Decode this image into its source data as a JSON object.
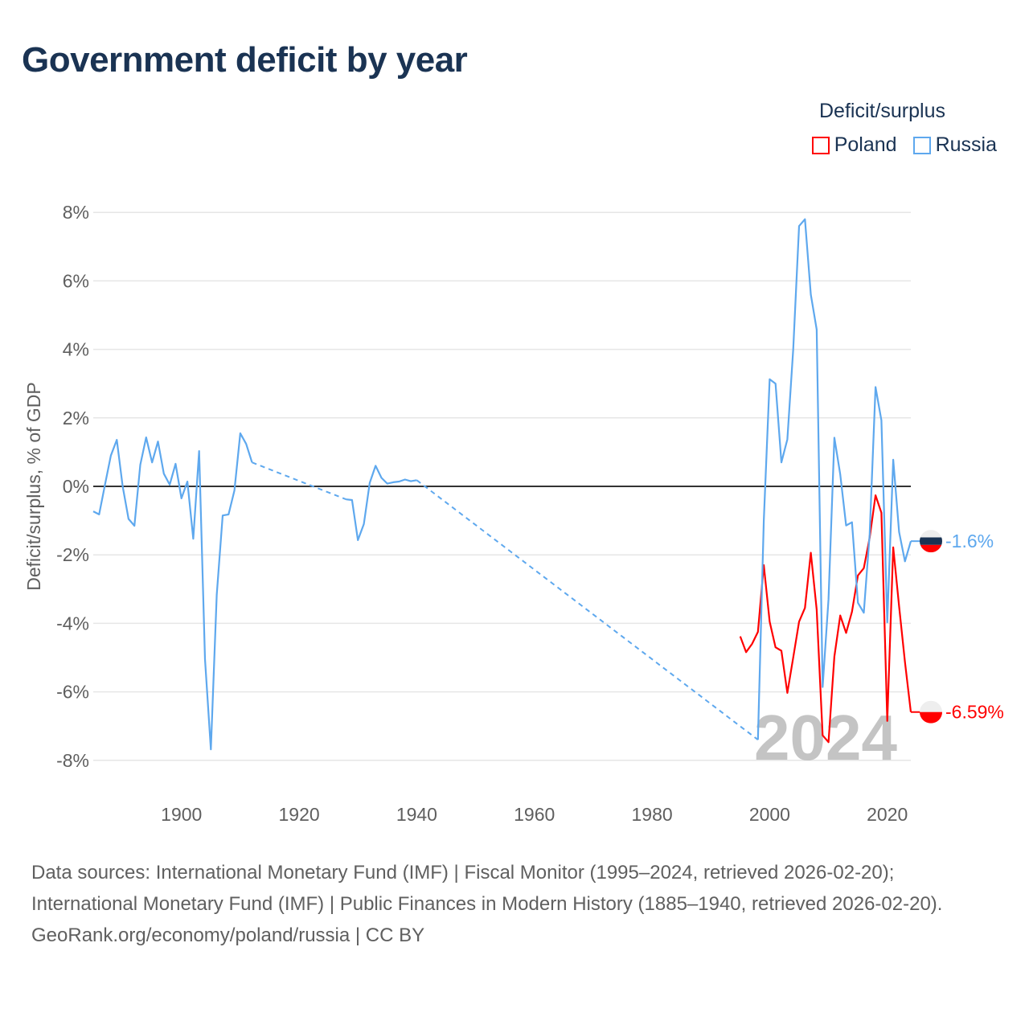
{
  "chart_data": {
    "type": "line",
    "title": "Government deficit by year",
    "xlabel": "",
    "ylabel": "Deficit/surplus, % of GDP",
    "xlim": [
      1885,
      2024
    ],
    "ylim": [
      -8.5,
      8.5
    ],
    "x_ticks": [
      1900,
      1920,
      1940,
      1960,
      1980,
      2000,
      2020
    ],
    "x_tick_labels": [
      "1900",
      "1920",
      "1940",
      "1960",
      "1980",
      "2000",
      "2020"
    ],
    "y_ticks": [
      -8,
      -6,
      -4,
      -2,
      0,
      2,
      4,
      6,
      8
    ],
    "y_tick_labels": [
      "-8%",
      "-6%",
      "-4%",
      "-2%",
      "0%",
      "2%",
      "4%",
      "6%",
      "8%"
    ],
    "grid": true,
    "legend_title": "Deficit/surplus",
    "legend_position": "top-right",
    "watermark_year": "2024",
    "series": [
      {
        "name": "Poland",
        "color": "#ff0000",
        "end_label": "-6.59%",
        "points": [
          [
            1995,
            -4.38
          ],
          [
            1996,
            -4.84
          ],
          [
            1997,
            -4.6
          ],
          [
            1998,
            -4.25
          ],
          [
            1999,
            -2.3
          ],
          [
            2000,
            -3.95
          ],
          [
            2001,
            -4.7
          ],
          [
            2002,
            -4.8
          ],
          [
            2003,
            -6.03
          ],
          [
            2004,
            -5.0
          ],
          [
            2005,
            -3.95
          ],
          [
            2006,
            -3.55
          ],
          [
            2007,
            -1.94
          ],
          [
            2008,
            -3.6
          ],
          [
            2009,
            -7.27
          ],
          [
            2010,
            -7.47
          ],
          [
            2011,
            -4.97
          ],
          [
            2012,
            -3.77
          ],
          [
            2013,
            -4.28
          ],
          [
            2014,
            -3.66
          ],
          [
            2015,
            -2.6
          ],
          [
            2016,
            -2.39
          ],
          [
            2017,
            -1.5
          ],
          [
            2018,
            -0.26
          ],
          [
            2019,
            -0.77
          ],
          [
            2020,
            -6.85
          ],
          [
            2021,
            -1.78
          ],
          [
            2022,
            -3.5
          ],
          [
            2023,
            -5.13
          ],
          [
            2024,
            -6.59
          ]
        ]
      },
      {
        "name": "Russia",
        "color": "#5ea8ee",
        "end_label": "-1.6%",
        "points": [
          [
            1885,
            -0.73
          ],
          [
            1886,
            -0.82
          ],
          [
            1887,
            0.05
          ],
          [
            1888,
            0.9
          ],
          [
            1889,
            1.36
          ],
          [
            1890,
            0.0
          ],
          [
            1891,
            -0.95
          ],
          [
            1892,
            -1.15
          ],
          [
            1893,
            0.63
          ],
          [
            1894,
            1.43
          ],
          [
            1895,
            0.7
          ],
          [
            1896,
            1.31
          ],
          [
            1897,
            0.37
          ],
          [
            1898,
            0.05
          ],
          [
            1899,
            0.66
          ],
          [
            1900,
            -0.35
          ],
          [
            1901,
            0.14
          ],
          [
            1902,
            -1.53
          ],
          [
            1903,
            1.03
          ],
          [
            1904,
            -5.05
          ],
          [
            1905,
            -7.68
          ],
          [
            1906,
            -3.17
          ],
          [
            1907,
            -0.85
          ],
          [
            1908,
            -0.82
          ],
          [
            1909,
            -0.12
          ],
          [
            1910,
            1.55
          ],
          [
            1911,
            1.24
          ],
          [
            1912,
            0.7
          ],
          [
            1928,
            -0.38
          ],
          [
            1929,
            -0.4
          ],
          [
            1930,
            -1.57
          ],
          [
            1931,
            -1.1
          ],
          [
            1932,
            0.1
          ],
          [
            1933,
            0.6
          ],
          [
            1934,
            0.25
          ],
          [
            1935,
            0.08
          ],
          [
            1936,
            0.12
          ],
          [
            1937,
            0.14
          ],
          [
            1938,
            0.2
          ],
          [
            1939,
            0.15
          ],
          [
            1940,
            0.18
          ],
          [
            1998,
            -7.4
          ],
          [
            1999,
            -1.0
          ],
          [
            2000,
            3.13
          ],
          [
            2001,
            3.0
          ],
          [
            2002,
            0.7
          ],
          [
            2003,
            1.37
          ],
          [
            2004,
            4.0
          ],
          [
            2005,
            7.6
          ],
          [
            2006,
            7.8
          ],
          [
            2007,
            5.6
          ],
          [
            2008,
            4.58
          ],
          [
            2009,
            -5.86
          ],
          [
            2010,
            -3.3
          ],
          [
            2011,
            1.42
          ],
          [
            2012,
            0.35
          ],
          [
            2013,
            -1.14
          ],
          [
            2014,
            -1.05
          ],
          [
            2015,
            -3.4
          ],
          [
            2016,
            -3.69
          ],
          [
            2017,
            -1.4
          ],
          [
            2018,
            2.9
          ],
          [
            2019,
            1.93
          ],
          [
            2020,
            -3.97
          ],
          [
            2021,
            0.78
          ],
          [
            2022,
            -1.33
          ],
          [
            2023,
            -2.19
          ],
          [
            2024,
            -1.6
          ]
        ]
      }
    ]
  },
  "footer": {
    "sources": "Data sources: International Monetary Fund (IMF) | Fiscal Monitor (1995–2024, retrieved 2026-02-20); International Monetary Fund (IMF) | Public Finances in Modern History (1885–1940, retrieved 2026-02-20).",
    "credit": "GeoRank.org/economy/poland/russia | CC BY"
  }
}
